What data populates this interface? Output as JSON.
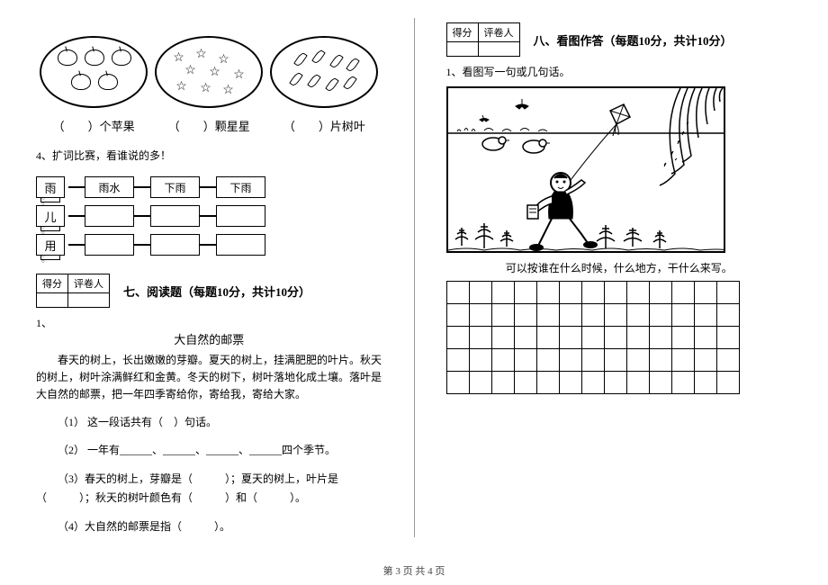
{
  "counting": {
    "label_apple": "（　　）个苹果",
    "label_star": "（　　）颗星星",
    "label_leaf": "（　　）片树叶"
  },
  "q4": {
    "prompt": "4、扩词比赛，看谁说的多！",
    "rows": [
      {
        "start": "雨",
        "boxes": [
          "雨水",
          "下雨",
          "下雨"
        ]
      },
      {
        "start": "儿",
        "boxes": [
          "",
          "",
          ""
        ]
      },
      {
        "start": "用",
        "boxes": [
          "",
          "",
          ""
        ]
      }
    ]
  },
  "score_header": {
    "col1": "得分",
    "col2": "评卷人"
  },
  "section7": {
    "title": "七、阅读题（每题10分，共计10分）",
    "num": "1、",
    "passage_title": "大自然的邮票",
    "passage": "春天的树上，长出嫩嫩的芽瓣。夏天的树上，挂满肥肥的叶片。秋天的树上，树叶涂满鲜红和金黄。冬天的树下，树叶落地化成土壤。落叶是大自然的邮票，把一年四季寄给你，寄给我，寄给大家。",
    "q1": "（1） 这一段话共有（　）句话。",
    "q2": "（2） 一年有______、______、______、______四个季节。",
    "q3": "（3）春天的树上，芽瓣是（　　　）；夏天的树上，叶片是（　　　）；秋天的树叶颜色有（　　　）和（　　　）。",
    "q4": "（4）大自然的邮票是指（　　　）。"
  },
  "section8": {
    "title": "八、看图作答（每题10分，共计10分）",
    "prompt": "1、看图写一句或几句话。",
    "hint": "可以按谁在什么时候，什么地方，干什么来写。",
    "grid_rows": 5,
    "grid_cols": 13
  },
  "footer": "第 3 页  共 4 页",
  "colors": {
    "line": "#000000",
    "bg": "#ffffff"
  }
}
